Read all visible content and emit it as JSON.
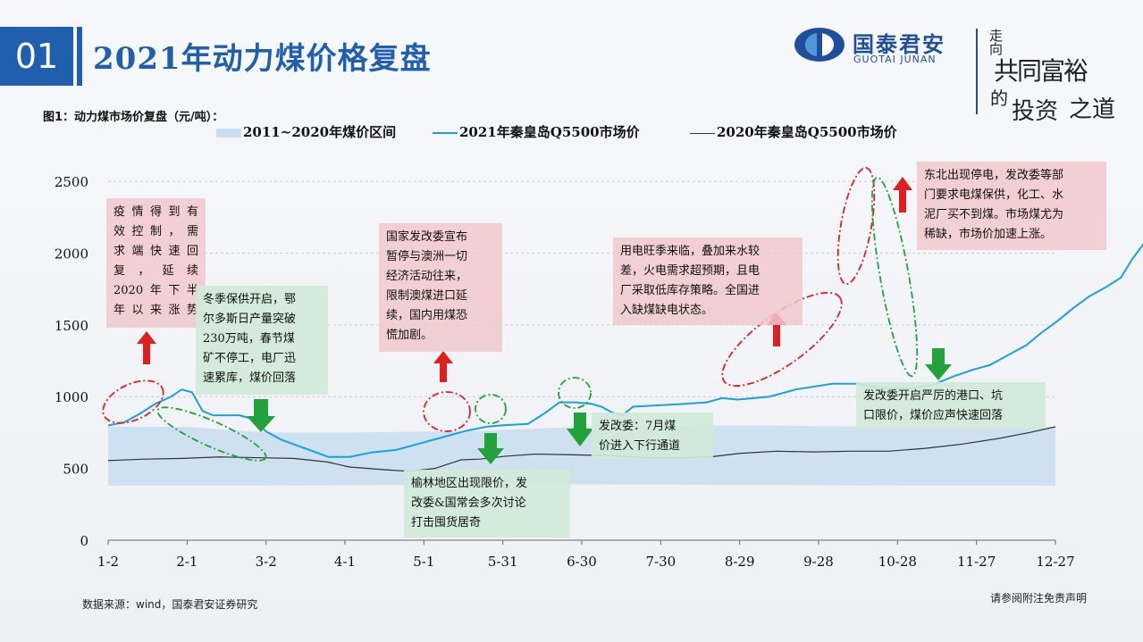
{
  "header": {
    "section_number": "01",
    "title": "2021年动力煤价格复盘",
    "logo_cn": "国泰君安",
    "logo_en": "GUOTAI JUNAN",
    "slogan_chars": [
      "走向",
      "共同富裕",
      "的",
      "投资",
      "之道"
    ]
  },
  "figure_title": "图1：动力煤市场价复盘（元/吨）：",
  "legend": {
    "band": "2011~2020年煤价区间",
    "series_2021": "2021年秦皇岛Q5500市场价",
    "series_2020": "2020年秦皇岛Q5500市场价"
  },
  "colors": {
    "brand": "#1f5fae",
    "band": "#c9dff1",
    "line_2021": "#1aa0de",
    "line_2020": "#333333",
    "note_red": "#f0c8cc",
    "note_green": "#d0ead8",
    "arrow_red": "#e02020",
    "arrow_green": "#22a23a"
  },
  "chart_data": {
    "type": "line",
    "x_tick_labels": [
      "1-2",
      "2-1",
      "3-2",
      "4-1",
      "5-1",
      "5-31",
      "6-30",
      "7-30",
      "8-29",
      "9-28",
      "10-28",
      "11-27",
      "12-27"
    ],
    "y_ticks": [
      0,
      500,
      1000,
      1500,
      2000,
      2500
    ],
    "ylim": [
      0,
      2600
    ],
    "xlim_day": [
      0,
      361
    ],
    "band_2011_2020": {
      "low": [
        [
          0,
          380
        ],
        [
          60,
          380
        ],
        [
          120,
          385
        ],
        [
          180,
          390
        ],
        [
          240,
          385
        ],
        [
          300,
          380
        ],
        [
          361,
          380
        ]
      ],
      "high": [
        [
          0,
          790
        ],
        [
          30,
          790
        ],
        [
          60,
          750
        ],
        [
          90,
          750
        ],
        [
          140,
          760
        ],
        [
          180,
          790
        ],
        [
          240,
          800
        ],
        [
          300,
          790
        ],
        [
          330,
          790
        ],
        [
          361,
          790
        ]
      ]
    },
    "series": [
      {
        "name": "2021年秦皇岛Q5500市场价",
        "points": [
          [
            0,
            800
          ],
          [
            6,
            820
          ],
          [
            12,
            880
          ],
          [
            18,
            950
          ],
          [
            24,
            1000
          ],
          [
            28,
            1050
          ],
          [
            32,
            1030
          ],
          [
            36,
            900
          ],
          [
            40,
            870
          ],
          [
            50,
            870
          ],
          [
            56,
            840
          ],
          [
            60,
            760
          ],
          [
            66,
            700
          ],
          [
            72,
            660
          ],
          [
            78,
            620
          ],
          [
            84,
            580
          ],
          [
            92,
            580
          ],
          [
            100,
            610
          ],
          [
            110,
            630
          ],
          [
            120,
            680
          ],
          [
            128,
            720
          ],
          [
            136,
            760
          ],
          [
            144,
            790
          ],
          [
            150,
            800
          ],
          [
            160,
            810
          ],
          [
            166,
            880
          ],
          [
            172,
            960
          ],
          [
            178,
            960
          ],
          [
            184,
            950
          ],
          [
            188,
            930
          ],
          [
            192,
            890
          ],
          [
            196,
            870
          ],
          [
            200,
            930
          ],
          [
            210,
            940
          ],
          [
            220,
            950
          ],
          [
            228,
            960
          ],
          [
            234,
            990
          ],
          [
            240,
            980
          ],
          [
            252,
            1000
          ],
          [
            262,
            1050
          ],
          [
            276,
            1090
          ],
          [
            286,
            1090
          ],
          [
            294,
            1060
          ],
          [
            306,
            1060
          ],
          [
            314,
            1080
          ],
          [
            322,
            1140
          ],
          [
            330,
            1190
          ],
          [
            336,
            1220
          ],
          [
            342,
            1280
          ],
          [
            350,
            1360
          ],
          [
            356,
            1450
          ],
          [
            362,
            1530
          ],
          [
            368,
            1620
          ],
          [
            374,
            1700
          ],
          [
            380,
            1760
          ],
          [
            386,
            1830
          ],
          [
            390,
            1950
          ],
          [
            396,
            2100
          ],
          [
            402,
            2250
          ],
          [
            406,
            2350
          ],
          [
            410,
            2460
          ],
          [
            412,
            2580
          ],
          [
            414,
            2540
          ],
          [
            418,
            2350
          ],
          [
            422,
            2100
          ],
          [
            426,
            1900
          ],
          [
            430,
            1650
          ],
          [
            434,
            1400
          ],
          [
            438,
            1200
          ]
        ]
      },
      {
        "name": "2020年秦皇岛Q5500市场价",
        "points": [
          [
            0,
            555
          ],
          [
            20,
            565
          ],
          [
            40,
            570
          ],
          [
            60,
            580
          ],
          [
            80,
            575
          ],
          [
            100,
            570
          ],
          [
            118,
            545
          ],
          [
            130,
            510
          ],
          [
            150,
            490
          ],
          [
            162,
            480
          ],
          [
            176,
            500
          ],
          [
            190,
            560
          ],
          [
            200,
            565
          ],
          [
            214,
            585
          ],
          [
            230,
            600
          ],
          [
            250,
            595
          ],
          [
            270,
            590
          ],
          [
            290,
            575
          ],
          [
            310,
            575
          ],
          [
            324,
            580
          ],
          [
            340,
            605
          ],
          [
            360,
            620
          ],
          [
            380,
            615
          ],
          [
            400,
            620
          ],
          [
            420,
            620
          ],
          [
            440,
            640
          ],
          [
            460,
            670
          ],
          [
            480,
            710
          ],
          [
            496,
            750
          ],
          [
            510,
            790
          ]
        ]
      }
    ],
    "annotations": [
      "疫情得到有效控制，需求端快速回复，延续2020年下半年以来涨势",
      "冬季保供开启，鄂尔多斯日产量突破230万吨，春节煤矿不停工，电厂迅速累库，煤价回落",
      "国家发改委宣布暂停与澳洲一切经济活动往来，限制澳煤进口延续，国内用煤恐慌加剧。",
      "榆林地区出现限价，发改委&国常会多次讨论打击囤货居奇",
      "发改委：7月煤价进入下行通道",
      "用电旺季来临，叠加来水较差，火电需求超预期，且电厂采取低库存策略。全国进入缺煤缺电状态。",
      "东北出现停电，发改委等部门要求电煤保供，化工、水泥厂买不到煤。市场煤尤为稀缺，市场价加速上涨。",
      "发改委开启严厉的港口、坑口限价，煤价应声快速回落"
    ]
  },
  "notes": {
    "n1": [
      "疫情得到有",
      "效控制，需",
      "求端快速回",
      "复，延续",
      "2020年下半",
      "年以来涨势"
    ],
    "n2": [
      "冬季保供开启，鄂",
      "尔多斯日产量突破",
      "230万吨，春节煤",
      "矿不停工，电厂迅",
      "速累库，煤价回落"
    ],
    "n3": [
      "国家发改委宣布",
      "暂停与澳洲一切",
      "经济活动往来，",
      "限制澳煤进口延",
      "续，国内用煤恐",
      "慌加剧。"
    ],
    "n4": [
      "榆林地区出现限价，发",
      "改委&国常会多次讨论",
      "打击囤货居奇"
    ],
    "n5": [
      "发改委：7月煤",
      "价进入下行通道"
    ],
    "n6": [
      "用电旺季来临，叠加来水较",
      "差，火电需求超预期，且电",
      "厂采取低库存策略。全国进",
      "入缺煤缺电状态。"
    ],
    "n7": [
      "东北出现停电，发改委等部",
      "门要求电煤保供，化工、水",
      "泥厂买不到煤。市场煤尤为",
      "稀缺，市场价加速上涨。"
    ],
    "n8": [
      "发改委开启严厉的港口、坑",
      "口限价，煤价应声快速回落"
    ]
  },
  "source": "数据来源：wind，国泰君安证券研究",
  "disclaimer": "请参阅附注免责声明"
}
